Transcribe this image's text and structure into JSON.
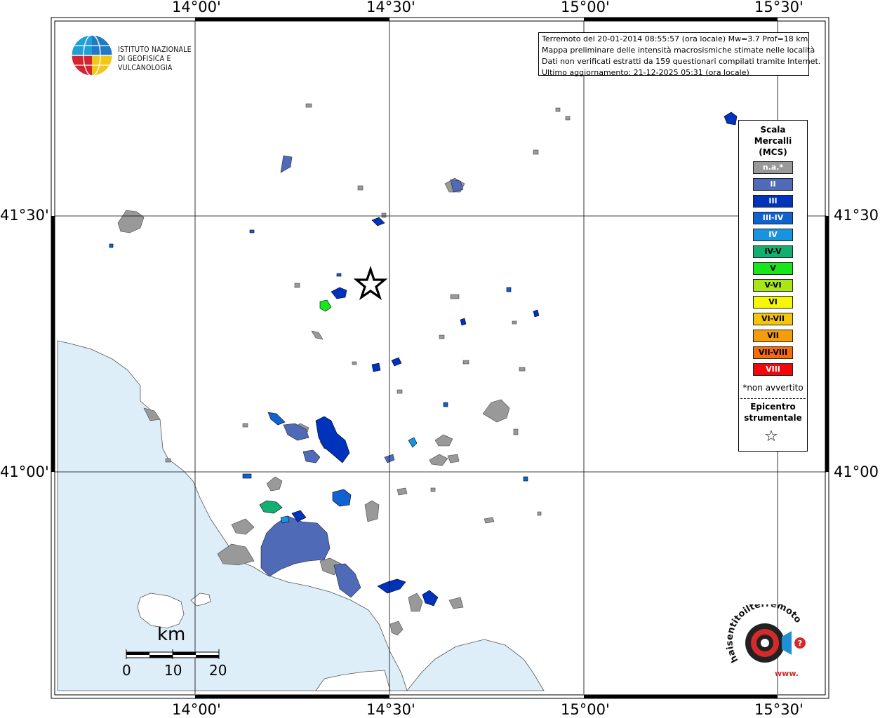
{
  "header": {
    "info_lines": [
      "Terremoto del 20-01-2014 08:55:57 (ora locale) Mw=3.7 Prof=18 km",
      "Mappa preliminare delle intensità macrosismiche stimate nelle località",
      "Dati non verificati estratti da 159 questionari compilati tramite Internet.",
      "Ultimo aggiornamento: 21-12-2025 05:31 (ora locale)"
    ]
  },
  "logo": {
    "line1": "ISTITUTO NAZIONALE",
    "line2": "DI GEOFISICA E VULCANOLOGIA"
  },
  "axes": {
    "lon_top": [
      "14°00'",
      "14°30'",
      "15°00'",
      "15°30'"
    ],
    "lon_bottom": [
      "14°00'",
      "14°30'",
      "15°00'",
      "15°30'"
    ],
    "lat_left": [
      "41°30'",
      "41°00'"
    ],
    "lat_right": [
      "41°30'",
      "41°00'"
    ]
  },
  "legend": {
    "title_lines": [
      "Scala",
      "Mercalli",
      "(MCS)"
    ],
    "classes": [
      {
        "label": "n.a.*",
        "color": "#999999"
      },
      {
        "label": "II",
        "color": "#4f6ab6"
      },
      {
        "label": "III",
        "color": "#0033bb"
      },
      {
        "label": "III-IV",
        "color": "#0f62cf"
      },
      {
        "label": "IV",
        "color": "#1794e0"
      },
      {
        "label": "IV-V",
        "color": "#11b070"
      },
      {
        "label": "V",
        "color": "#16e61a"
      },
      {
        "label": "V-VI",
        "color": "#a8e615"
      },
      {
        "label": "VI",
        "color": "#f6f607"
      },
      {
        "label": "VI-VII",
        "color": "#f5c507"
      },
      {
        "label": "VII",
        "color": "#f59d0b"
      },
      {
        "label": "VII-VIII",
        "color": "#f46c0d"
      },
      {
        "label": "VIII",
        "color": "#f2060a"
      }
    ],
    "note": "*non avvertito",
    "epicenter_line1": "Epicentro",
    "epicenter_line2": "strumentale"
  },
  "scalebar": {
    "unit": "km",
    "ticks": [
      "0",
      "10",
      "20"
    ]
  },
  "badge": {
    "text": "haisentitoilterremoto.it",
    "url_text": "www."
  },
  "colors": {
    "sea": "#deeef9",
    "land": "#ffffff",
    "grid": "#000000",
    "na": "#999999"
  }
}
